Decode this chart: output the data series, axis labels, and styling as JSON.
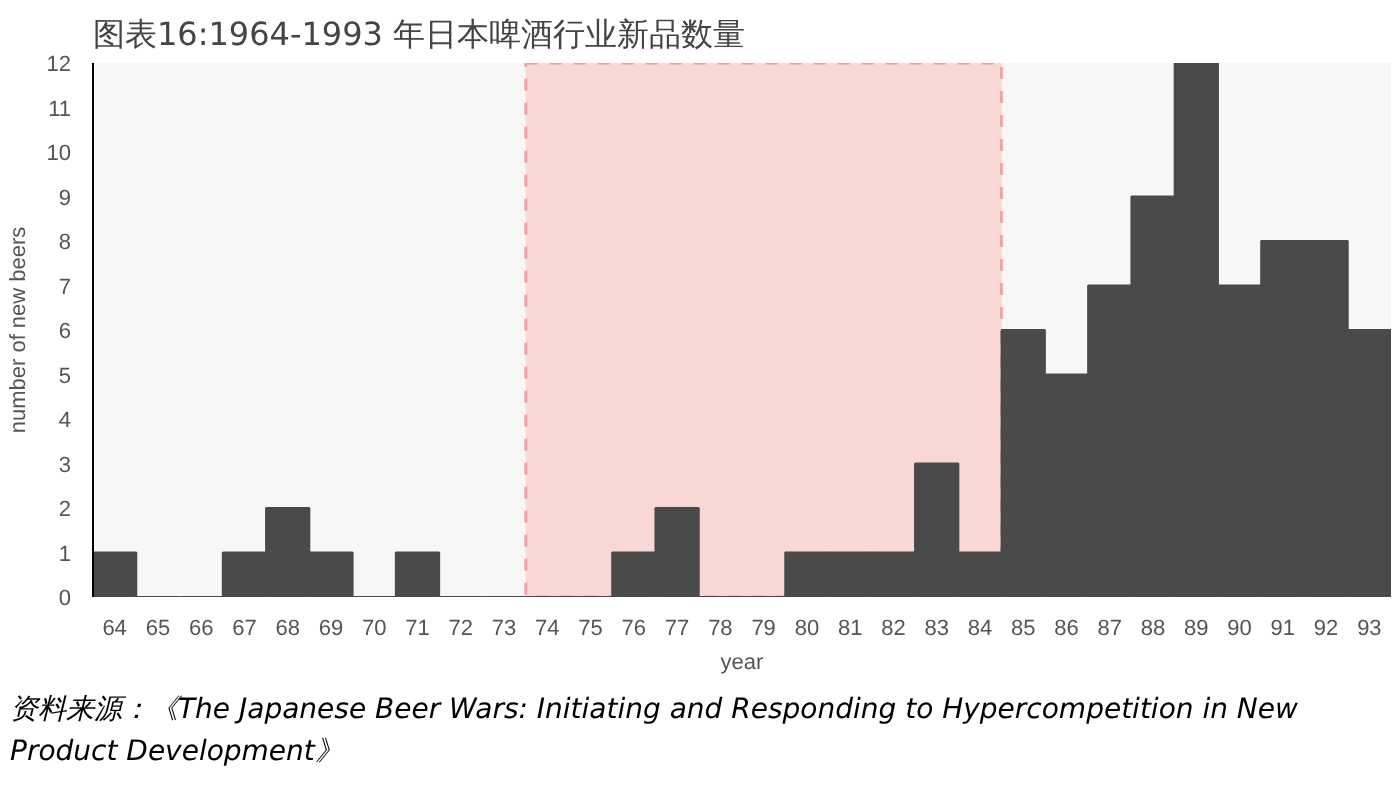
{
  "chart_data": {
    "type": "bar",
    "title": "图表16:1964-1993 年日本啤酒行业新品数量",
    "xlabel": "year",
    "ylabel": "number of new beers",
    "categories": [
      "64",
      "65",
      "66",
      "67",
      "68",
      "69",
      "70",
      "71",
      "72",
      "73",
      "74",
      "75",
      "76",
      "77",
      "78",
      "79",
      "80",
      "81",
      "82",
      "83",
      "84",
      "85",
      "86",
      "87",
      "88",
      "89",
      "90",
      "91",
      "92",
      "93"
    ],
    "values": [
      1,
      0,
      0,
      1,
      2,
      1,
      0,
      1,
      0,
      0,
      0,
      0,
      1,
      2,
      0,
      0,
      1,
      1,
      1,
      3,
      1,
      6,
      5,
      7,
      9,
      12,
      7,
      8,
      8,
      6
    ],
    "color": "#4a4a4a",
    "ylim": [
      0,
      12
    ],
    "yticks": [
      0,
      1,
      2,
      3,
      4,
      5,
      6,
      7,
      8,
      9,
      10,
      11,
      12
    ],
    "grid": false,
    "bands": [
      {
        "axis": "x",
        "from": "74",
        "to": "84",
        "color": "#ff0000"
      }
    ],
    "annotations": [
      "资料来源：《The Japanese Beer Wars: Initiating and Responding to Hypercompetition in New Product Development》"
    ]
  }
}
